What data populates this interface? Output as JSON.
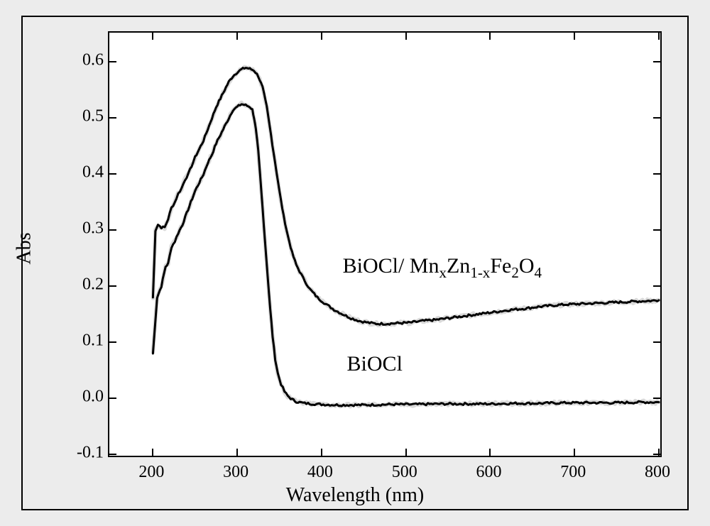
{
  "chart": {
    "type": "line",
    "background_color": "#ececec",
    "panel_border_color": "#000000",
    "plot_background_color": "#ffffff",
    "x_axis": {
      "title": "Wavelength (nm)",
      "min": 150,
      "max": 800,
      "ticks": [
        200,
        300,
        400,
        500,
        600,
        700,
        800
      ],
      "title_fontsize": 28,
      "tick_fontsize": 24
    },
    "y_axis": {
      "title": "Abs",
      "min": -0.1,
      "max": 0.65,
      "ticks": [
        -0.1,
        0.0,
        0.1,
        0.2,
        0.3,
        0.4,
        0.5,
        0.6
      ],
      "tick_labels": [
        "-0.1",
        "0.0",
        "0.1",
        "0.2",
        "0.3",
        "0.4",
        "0.5",
        "0.6"
      ],
      "title_fontsize": 28,
      "tick_fontsize": 24
    },
    "series": [
      {
        "name": "BiOCl",
        "label_html": "BiOCl",
        "label_pos_nm": 430,
        "label_pos_abs": 0.06,
        "color": "#000000",
        "line_width": 3,
        "data": [
          [
            200,
            0.08
          ],
          [
            205,
            0.18
          ],
          [
            210,
            0.2
          ],
          [
            215,
            0.235
          ],
          [
            218,
            0.24
          ],
          [
            222,
            0.27
          ],
          [
            226,
            0.28
          ],
          [
            230,
            0.295
          ],
          [
            235,
            0.31
          ],
          [
            240,
            0.33
          ],
          [
            245,
            0.35
          ],
          [
            250,
            0.37
          ],
          [
            255,
            0.385
          ],
          [
            260,
            0.4
          ],
          [
            265,
            0.42
          ],
          [
            270,
            0.435
          ],
          [
            275,
            0.455
          ],
          [
            280,
            0.47
          ],
          [
            285,
            0.485
          ],
          [
            290,
            0.5
          ],
          [
            295,
            0.515
          ],
          [
            300,
            0.52
          ],
          [
            305,
            0.525
          ],
          [
            310,
            0.523
          ],
          [
            315,
            0.52
          ],
          [
            318,
            0.515
          ],
          [
            320,
            0.5
          ],
          [
            322,
            0.48
          ],
          [
            325,
            0.44
          ],
          [
            328,
            0.38
          ],
          [
            330,
            0.34
          ],
          [
            333,
            0.28
          ],
          [
            336,
            0.22
          ],
          [
            339,
            0.16
          ],
          [
            342,
            0.11
          ],
          [
            345,
            0.07
          ],
          [
            348,
            0.045
          ],
          [
            352,
            0.025
          ],
          [
            356,
            0.012
          ],
          [
            360,
            0.004
          ],
          [
            365,
            -0.002
          ],
          [
            370,
            -0.006
          ],
          [
            380,
            -0.009
          ],
          [
            400,
            -0.011
          ],
          [
            420,
            -0.012
          ],
          [
            450,
            -0.012
          ],
          [
            480,
            -0.011
          ],
          [
            510,
            -0.011
          ],
          [
            540,
            -0.01
          ],
          [
            570,
            -0.01
          ],
          [
            600,
            -0.01
          ],
          [
            630,
            -0.009
          ],
          [
            660,
            -0.009
          ],
          [
            690,
            -0.008
          ],
          [
            720,
            -0.008
          ],
          [
            750,
            -0.008
          ],
          [
            780,
            -0.007
          ],
          [
            800,
            -0.007
          ]
        ]
      },
      {
        "name": "BiOCl/MnxZn1-xFe2O4",
        "label_html": "BiOCl/ Mn<span class=\"sub\">x</span>Zn<span class=\"sub\">1-x</span>Fe<span class=\"sub\">2</span>O<span class=\"sub\">4</span>",
        "label_pos_nm": 425,
        "label_pos_abs": 0.235,
        "color": "#000000",
        "line_width": 3,
        "data": [
          [
            200,
            0.18
          ],
          [
            203,
            0.3
          ],
          [
            206,
            0.31
          ],
          [
            210,
            0.305
          ],
          [
            214,
            0.305
          ],
          [
            218,
            0.32
          ],
          [
            222,
            0.34
          ],
          [
            226,
            0.35
          ],
          [
            230,
            0.365
          ],
          [
            234,
            0.375
          ],
          [
            238,
            0.39
          ],
          [
            242,
            0.4
          ],
          [
            246,
            0.415
          ],
          [
            250,
            0.43
          ],
          [
            255,
            0.445
          ],
          [
            260,
            0.46
          ],
          [
            265,
            0.48
          ],
          [
            270,
            0.5
          ],
          [
            275,
            0.52
          ],
          [
            280,
            0.535
          ],
          [
            285,
            0.55
          ],
          [
            290,
            0.565
          ],
          [
            295,
            0.575
          ],
          [
            300,
            0.582
          ],
          [
            305,
            0.587
          ],
          [
            310,
            0.59
          ],
          [
            315,
            0.588
          ],
          [
            320,
            0.585
          ],
          [
            325,
            0.575
          ],
          [
            330,
            0.555
          ],
          [
            335,
            0.52
          ],
          [
            340,
            0.47
          ],
          [
            345,
            0.42
          ],
          [
            350,
            0.37
          ],
          [
            355,
            0.325
          ],
          [
            360,
            0.29
          ],
          [
            365,
            0.26
          ],
          [
            370,
            0.238
          ],
          [
            378,
            0.215
          ],
          [
            386,
            0.195
          ],
          [
            395,
            0.18
          ],
          [
            405,
            0.168
          ],
          [
            415,
            0.158
          ],
          [
            425,
            0.15
          ],
          [
            435,
            0.143
          ],
          [
            445,
            0.138
          ],
          [
            455,
            0.135
          ],
          [
            465,
            0.133
          ],
          [
            475,
            0.133
          ],
          [
            490,
            0.134
          ],
          [
            505,
            0.135
          ],
          [
            520,
            0.138
          ],
          [
            535,
            0.14
          ],
          [
            550,
            0.143
          ],
          [
            565,
            0.146
          ],
          [
            580,
            0.149
          ],
          [
            595,
            0.152
          ],
          [
            610,
            0.155
          ],
          [
            625,
            0.158
          ],
          [
            640,
            0.16
          ],
          [
            655,
            0.163
          ],
          [
            670,
            0.165
          ],
          [
            685,
            0.167
          ],
          [
            700,
            0.168
          ],
          [
            715,
            0.169
          ],
          [
            730,
            0.17
          ],
          [
            745,
            0.171
          ],
          [
            760,
            0.172
          ],
          [
            775,
            0.173
          ],
          [
            790,
            0.174
          ],
          [
            800,
            0.175
          ]
        ]
      }
    ]
  }
}
